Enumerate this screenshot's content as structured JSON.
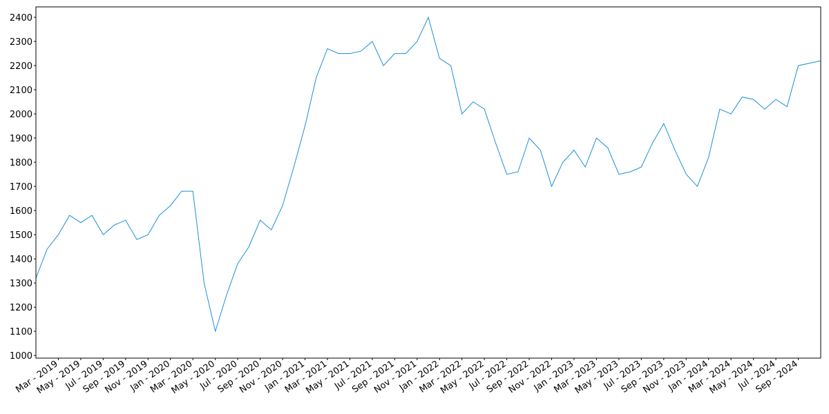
{
  "chart_data": {
    "type": "line",
    "color": "#1a8fd6",
    "grid": false,
    "x": [
      "2019-01",
      "2019-02",
      "2019-03",
      "2019-04",
      "2019-05",
      "2019-06",
      "2019-07",
      "2019-08",
      "2019-09",
      "2019-10",
      "2019-11",
      "2019-12",
      "2020-01",
      "2020-02",
      "2020-03",
      "2020-04",
      "2020-05",
      "2020-06",
      "2020-07",
      "2020-08",
      "2020-09",
      "2020-10",
      "2020-11",
      "2020-12",
      "2021-01",
      "2021-02",
      "2021-03",
      "2021-04",
      "2021-05",
      "2021-06",
      "2021-07",
      "2021-08",
      "2021-09",
      "2021-10",
      "2021-11",
      "2021-12",
      "2022-01",
      "2022-02",
      "2022-03",
      "2022-04",
      "2022-05",
      "2022-06",
      "2022-07",
      "2022-08",
      "2022-09",
      "2022-10",
      "2022-11",
      "2022-12",
      "2023-01",
      "2023-02",
      "2023-03",
      "2023-04",
      "2023-05",
      "2023-06",
      "2023-07",
      "2023-08",
      "2023-09",
      "2023-10",
      "2023-11",
      "2023-12",
      "2024-01",
      "2024-02",
      "2024-03",
      "2024-04",
      "2024-05",
      "2024-06",
      "2024-07",
      "2024-08",
      "2024-09",
      "2024-10",
      "2024-11"
    ],
    "values": [
      1320,
      1440,
      1500,
      1580,
      1550,
      1580,
      1500,
      1540,
      1560,
      1480,
      1500,
      1580,
      1620,
      1680,
      1680,
      1300,
      1100,
      1250,
      1380,
      1450,
      1560,
      1520,
      1620,
      1780,
      1950,
      2150,
      2270,
      2250,
      2250,
      2260,
      2300,
      2200,
      2250,
      2250,
      2300,
      2400,
      2230,
      2200,
      2000,
      2050,
      2020,
      1880,
      1750,
      1760,
      1900,
      1850,
      1700,
      1800,
      1850,
      1780,
      1900,
      1860,
      1750,
      1760,
      1780,
      1880,
      1960,
      1850,
      1750,
      1700,
      1820,
      2020,
      2000,
      2070,
      2060,
      2020,
      2060,
      2030,
      2200,
      2210,
      2220
    ],
    "xlim": [
      "2019-01",
      "2024-11"
    ],
    "ylim": [
      989,
      2443
    ],
    "yticks": [
      1000,
      1100,
      1200,
      1300,
      1400,
      1500,
      1600,
      1700,
      1800,
      1900,
      2000,
      2100,
      2200,
      2300,
      2400
    ],
    "xticks": [
      {
        "value": "2019-03",
        "label": "Mar - 2019"
      },
      {
        "value": "2019-05",
        "label": "May - 2019"
      },
      {
        "value": "2019-07",
        "label": "Jul - 2019"
      },
      {
        "value": "2019-09",
        "label": "Sep - 2019"
      },
      {
        "value": "2019-11",
        "label": "Nov - 2019"
      },
      {
        "value": "2020-01",
        "label": "Jan - 2020"
      },
      {
        "value": "2020-03",
        "label": "Mar - 2020"
      },
      {
        "value": "2020-05",
        "label": "May - 2020"
      },
      {
        "value": "2020-07",
        "label": "Jul - 2020"
      },
      {
        "value": "2020-09",
        "label": "Sep - 2020"
      },
      {
        "value": "2020-11",
        "label": "Nov - 2020"
      },
      {
        "value": "2021-01",
        "label": "Jan - 2021"
      },
      {
        "value": "2021-03",
        "label": "Mar - 2021"
      },
      {
        "value": "2021-05",
        "label": "May - 2021"
      },
      {
        "value": "2021-07",
        "label": "Jul - 2021"
      },
      {
        "value": "2021-09",
        "label": "Sep - 2021"
      },
      {
        "value": "2021-11",
        "label": "Nov - 2021"
      },
      {
        "value": "2022-01",
        "label": "Jan - 2022"
      },
      {
        "value": "2022-03",
        "label": "Mar - 2022"
      },
      {
        "value": "2022-05",
        "label": "May - 2022"
      },
      {
        "value": "2022-07",
        "label": "Jul - 2022"
      },
      {
        "value": "2022-09",
        "label": "Sep - 2022"
      },
      {
        "value": "2022-11",
        "label": "Nov - 2022"
      },
      {
        "value": "2023-01",
        "label": "Jan - 2023"
      },
      {
        "value": "2023-03",
        "label": "Mar - 2023"
      },
      {
        "value": "2023-05",
        "label": "May - 2023"
      },
      {
        "value": "2023-07",
        "label": "Jul - 2023"
      },
      {
        "value": "2023-09",
        "label": "Sep - 2023"
      },
      {
        "value": "2023-11",
        "label": "Nov - 2023"
      },
      {
        "value": "2024-01",
        "label": "Jan - 2024"
      },
      {
        "value": "2024-03",
        "label": "Mar - 2024"
      },
      {
        "value": "2024-05",
        "label": "May - 2024"
      },
      {
        "value": "2024-07",
        "label": "Jul - 2024"
      },
      {
        "value": "2024-09",
        "label": "Sep - 2024"
      }
    ]
  }
}
